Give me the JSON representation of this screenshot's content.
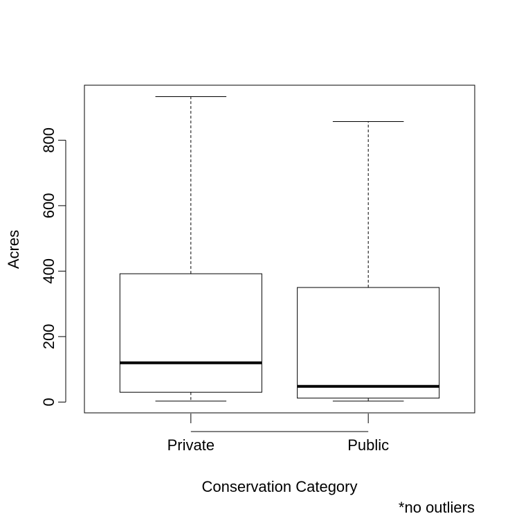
{
  "chart_data": {
    "type": "boxplot",
    "title": "",
    "xlabel": "Conservation Category",
    "ylabel": "Acres",
    "note": "*no outliers",
    "categories": [
      "Private",
      "Public"
    ],
    "boxes": [
      {
        "category": "Private",
        "min": 3,
        "q1": 30,
        "median": 120,
        "q3": 392,
        "max": 933
      },
      {
        "category": "Public",
        "min": 3,
        "q1": 12,
        "median": 48,
        "q3": 350,
        "max": 857
      }
    ],
    "yticks": [
      0,
      200,
      400,
      600,
      800
    ],
    "ytick_labels": [
      "0",
      "200",
      "400",
      "600",
      "800"
    ],
    "ylim": [
      -33,
      968
    ],
    "grid": false,
    "legend": "none",
    "colors": {
      "box_fill": "#ffffff",
      "stroke": "#000000"
    }
  }
}
